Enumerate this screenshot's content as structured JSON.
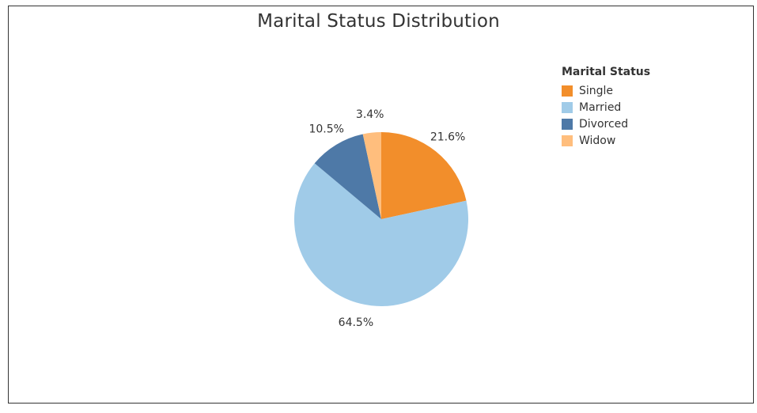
{
  "chart_data": {
    "type": "pie",
    "title": "Marital Status Distribution",
    "legend": {
      "title": "Marital Status",
      "placement": "right"
    },
    "slices": [
      {
        "label": "Single",
        "value": 21.6,
        "display": "21.6%",
        "color": "#f28e2b"
      },
      {
        "label": "Married",
        "value": 64.5,
        "display": "64.5%",
        "color": "#a0cbe8"
      },
      {
        "label": "Divorced",
        "value": 10.5,
        "display": "10.5%",
        "color": "#4e79a7"
      },
      {
        "label": "Widow",
        "value": 3.4,
        "display": "3.4%",
        "color": "#ffbe7d"
      }
    ]
  }
}
